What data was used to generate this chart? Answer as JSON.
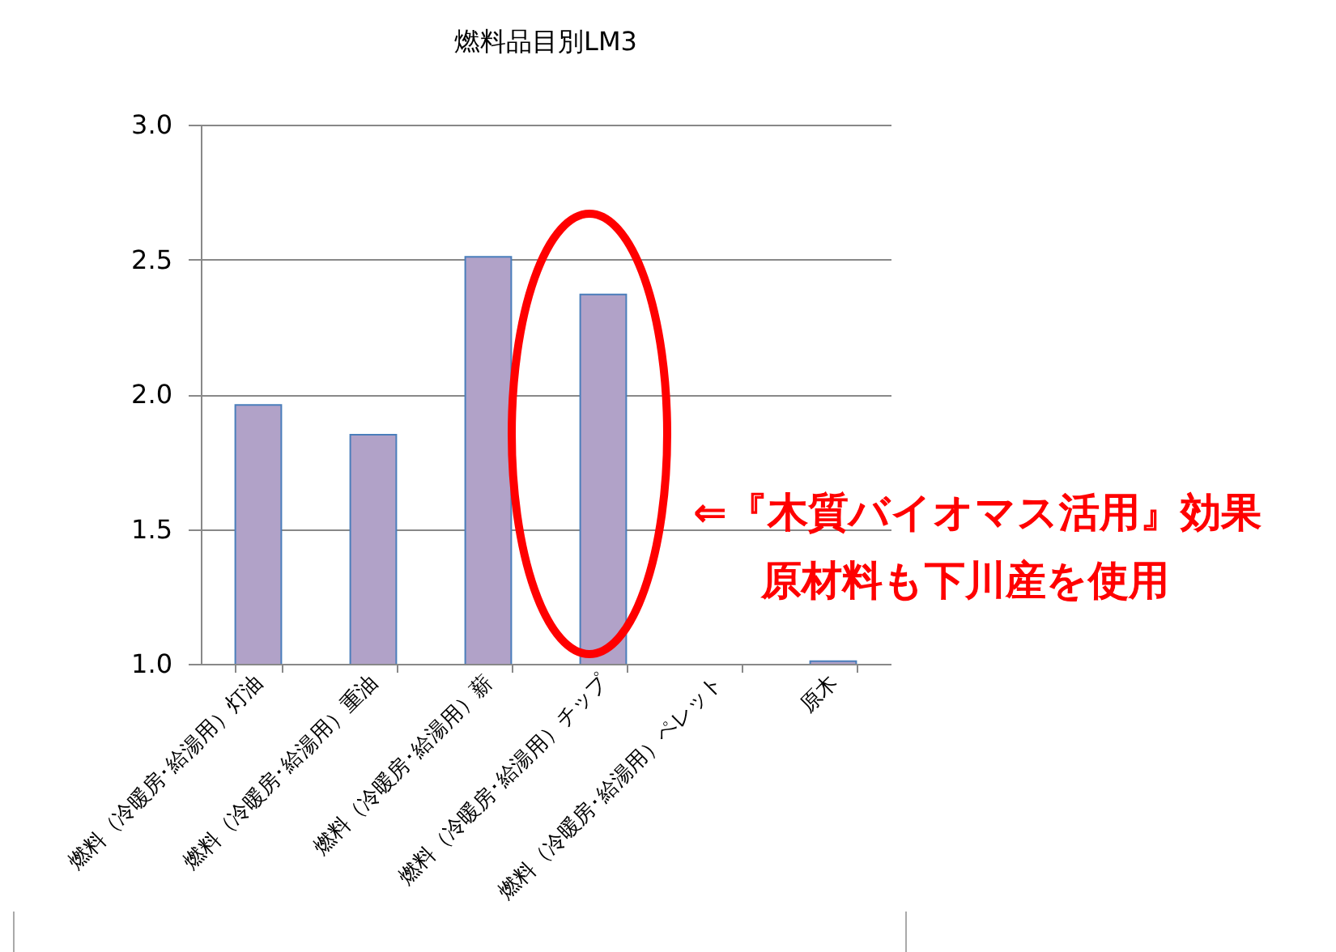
{
  "chart_data": {
    "type": "bar",
    "title": "燃料品目別LM3",
    "categories": [
      "燃料（冷暖房･給湯用）灯油",
      "燃料（冷暖房･給湯用）重油",
      "燃料（冷暖房･給湯用）薪",
      "燃料（冷暖房･給湯用）チップ",
      "燃料（冷暖房･給湯用）ペレット",
      "原木"
    ],
    "values": [
      1.96,
      1.85,
      2.51,
      2.37,
      null,
      1.01
    ],
    "color": "#b1a2c8",
    "ylim": [
      1.0,
      3.0
    ],
    "yticks": [
      {
        "value": 1,
        "label": "1.0"
      },
      {
        "value": 1.5,
        "label": "1.5"
      },
      {
        "value": 2,
        "label": "2.0"
      },
      {
        "value": 2.5,
        "label": "2.5"
      },
      {
        "value": 3,
        "label": "3.0"
      }
    ],
    "grid": "y",
    "annotations": [
      "⇐『木質バイオマス活用』効果",
      "原材料も下川産を使用"
    ]
  }
}
